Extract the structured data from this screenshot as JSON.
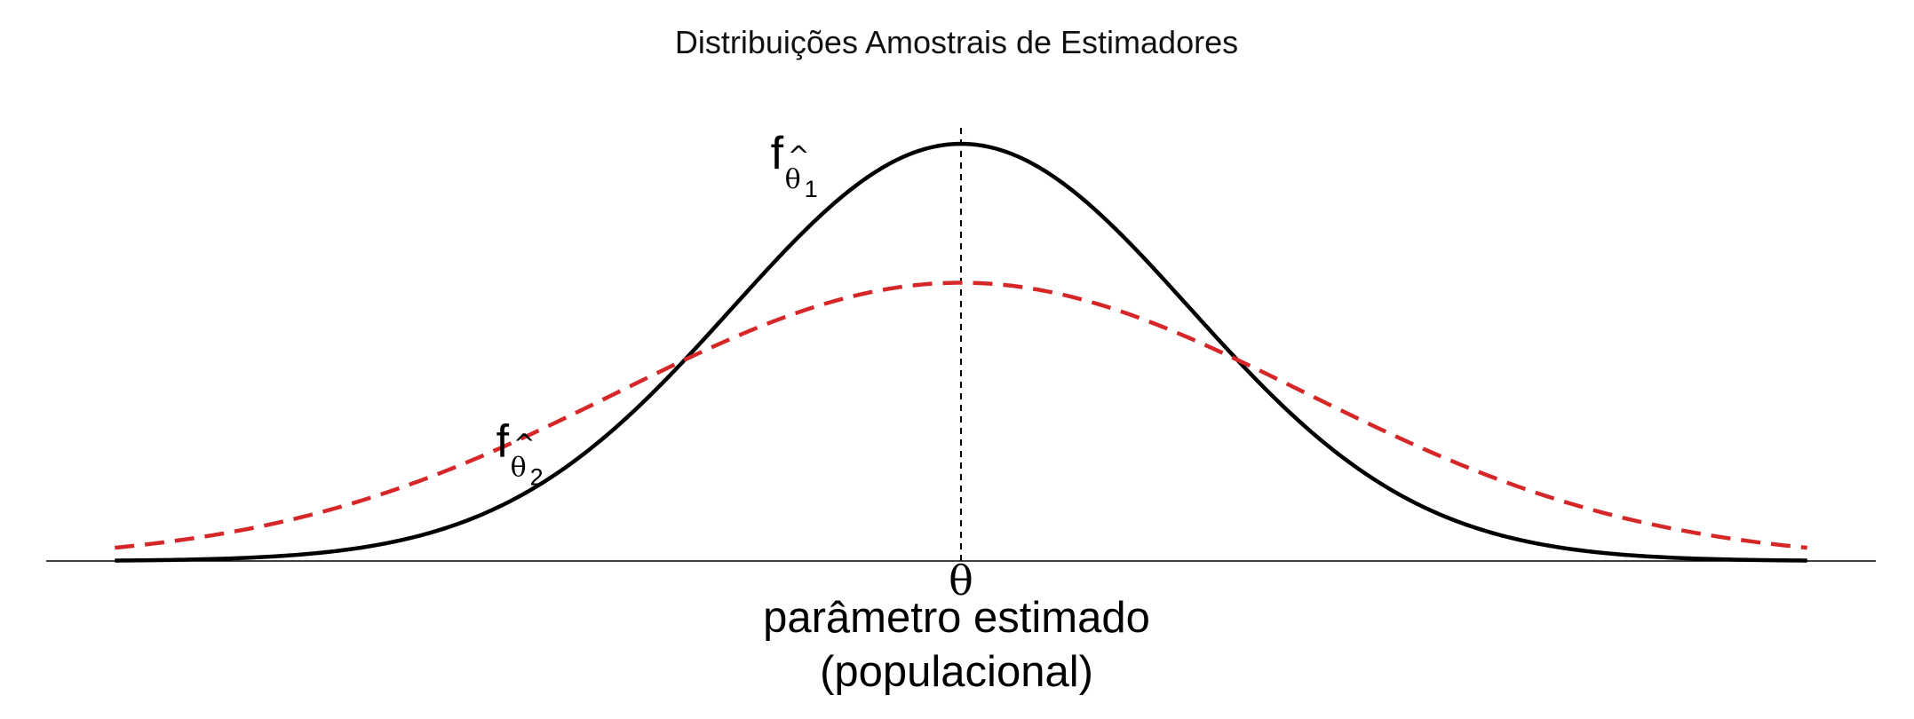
{
  "chart_data": {
    "type": "line",
    "title": "Distribuições Amostrais de Estimadores",
    "xlabel_line1": "parâmetro estimado",
    "xlabel_line2": "(populacional)",
    "ylabel": "",
    "xlim": [
      -4,
      4
    ],
    "ylim": [
      0,
      1.06
    ],
    "grid": false,
    "xticks": [
      {
        "value": 0,
        "label": "θ"
      }
    ],
    "reference_line": {
      "x": 0,
      "style": "dashed",
      "color": "#000000"
    },
    "series": [
      {
        "name": "f_θ̂1",
        "color": "#000000",
        "style": "solid",
        "sd": 1.0,
        "x": [
          -3.7,
          -3.5,
          -3.0,
          -2.5,
          -2.0,
          -1.5,
          -1.0,
          -0.5,
          0,
          0.5,
          1.0,
          1.5,
          2.0,
          2.5,
          3.0,
          3.5,
          3.7
        ],
        "y": [
          0.001,
          0.002,
          0.011,
          0.044,
          0.135,
          0.325,
          0.607,
          0.882,
          1.0,
          0.882,
          0.607,
          0.325,
          0.135,
          0.044,
          0.011,
          0.002,
          0.001
        ]
      },
      {
        "name": "f_θ̂2",
        "color": "#d62728",
        "style": "dashed",
        "sd": 1.5,
        "x": [
          -3.7,
          -3.5,
          -3.0,
          -2.5,
          -2.0,
          -1.5,
          -1.0,
          -0.5,
          0,
          0.5,
          1.0,
          1.5,
          2.0,
          2.5,
          3.0,
          3.5,
          3.7
        ],
        "y": [
          0.032,
          0.043,
          0.09,
          0.166,
          0.273,
          0.405,
          0.534,
          0.63,
          0.667,
          0.63,
          0.534,
          0.405,
          0.273,
          0.166,
          0.09,
          0.043,
          0.032
        ]
      }
    ],
    "annotations": [
      {
        "series": 0,
        "main": "f",
        "hat": "^",
        "symbol": "θ",
        "index": "1",
        "x": -0.25,
        "y": 0.94
      },
      {
        "series": 1,
        "main": "f",
        "hat": "^",
        "symbol": "θ",
        "index": "2",
        "x": -1.45,
        "y": 0.25
      }
    ]
  }
}
